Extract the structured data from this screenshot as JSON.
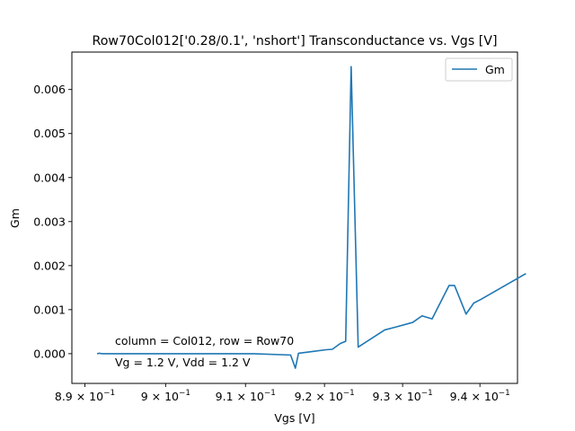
{
  "chart_data": {
    "type": "line",
    "title": "Row70Col012['0.28/0.1', 'nshort'] Transconductance vs. Vgs [V]",
    "xlabel": "Vgs [V]",
    "ylabel": "Gm",
    "xscale": "log",
    "xlim": [
      0.8884,
      0.9449
    ],
    "ylim": [
      -0.000675,
      0.00685
    ],
    "grid": false,
    "legend_position": "top-right",
    "x_ticks": [
      {
        "value": 0.89,
        "base": "8.9",
        "exp": "−1"
      },
      {
        "value": 0.9,
        "base": "9",
        "exp": "−1"
      },
      {
        "value": 0.91,
        "base": "9.1",
        "exp": "−1"
      },
      {
        "value": 0.92,
        "base": "9.2",
        "exp": "−1"
      },
      {
        "value": 0.93,
        "base": "9.3",
        "exp": "−1"
      },
      {
        "value": 0.94,
        "base": "9.4",
        "exp": "−1"
      }
    ],
    "x_tick_times": "× 10",
    "y_ticks": [
      {
        "value": 0.0,
        "label": "0.000"
      },
      {
        "value": 0.001,
        "label": "0.001"
      },
      {
        "value": 0.002,
        "label": "0.002"
      },
      {
        "value": 0.003,
        "label": "0.003"
      },
      {
        "value": 0.004,
        "label": "0.004"
      },
      {
        "value": 0.005,
        "label": "0.005"
      },
      {
        "value": 0.006,
        "label": "0.006"
      }
    ],
    "series": [
      {
        "name": "Gm",
        "color": "#1f77b4",
        "points": [
          [
            0.8915,
            0.0
          ],
          [
            0.8918,
            1e-05
          ],
          [
            0.8921,
            0.0
          ],
          [
            0.8925,
            0.0
          ],
          [
            0.8935,
            0.0
          ],
          [
            0.895,
            0.0
          ],
          [
            0.899,
            0.0
          ],
          [
            0.903,
            0.0
          ],
          [
            0.907,
            0.0
          ],
          [
            0.911,
            0.0
          ],
          [
            0.9157,
            -3e-05
          ],
          [
            0.9163,
            -0.00033
          ],
          [
            0.9167,
            1e-05
          ],
          [
            0.9185,
            5e-05
          ],
          [
            0.9202,
            9e-05
          ],
          [
            0.921,
            0.0001
          ],
          [
            0.922,
            0.00023
          ],
          [
            0.9227,
            0.00028
          ],
          [
            0.9234,
            0.00652
          ],
          [
            0.9243,
            0.00015
          ],
          [
            0.9277,
            0.00054
          ],
          [
            0.929,
            0.0006
          ],
          [
            0.9313,
            0.00071
          ],
          [
            0.9325,
            0.00086
          ],
          [
            0.9338,
            0.00079
          ],
          [
            0.936,
            0.00155
          ],
          [
            0.9367,
            0.00155
          ],
          [
            0.9382,
            0.0009
          ],
          [
            0.9392,
            0.00115
          ],
          [
            0.9401,
            0.00123
          ],
          [
            0.946,
            0.00182
          ]
        ]
      }
    ],
    "annotations": [
      "column = Col012, row = Row70",
      "Vg = 1.2 V, Vdd = 1.2 V"
    ]
  }
}
